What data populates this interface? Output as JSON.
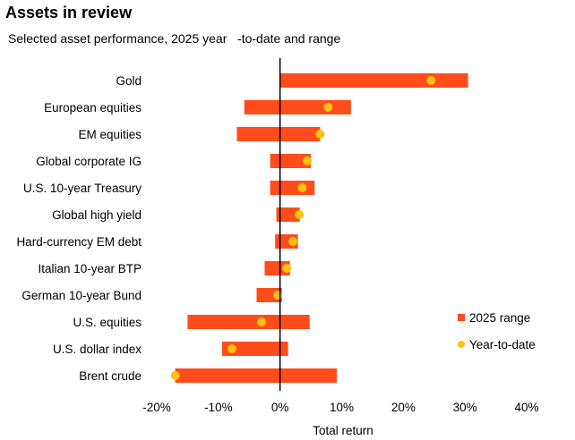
{
  "header": {
    "title": "Assets in review",
    "subtitle_parts": [
      "Selected asset performance, 2025 year",
      "-to-date",
      "and range"
    ]
  },
  "chart_data": {
    "type": "bar",
    "orientation": "horizontal",
    "title": "Assets in review",
    "subtitle": "Selected asset performance, 2025 year-to-date and range",
    "xlabel": "Total return",
    "ylabel": "",
    "xlim": [
      -20,
      40
    ],
    "xticks": [
      -20,
      -10,
      0,
      10,
      20,
      30,
      40
    ],
    "xtick_labels": [
      "-20%",
      "-10%",
      "0%",
      "10%",
      "20%",
      "30%",
      "40%"
    ],
    "categories": [
      "Gold",
      "European equities",
      "EM equities",
      "Global corporate IG",
      "U.S. 10-year Treasury",
      "Global high yield",
      "Hard-currency EM debt",
      "Italian 10-year BTP",
      "German 10-year Bund",
      "U.S. equities",
      "U.S. dollar index",
      "Brent crude"
    ],
    "series": [
      {
        "name": "2025 range",
        "color": "#FF4C1A",
        "kind": "range",
        "low": [
          0,
          -5.8,
          -7,
          -1.6,
          -1.6,
          -0.6,
          -0.8,
          -2.5,
          -3.8,
          -15,
          -9.4,
          -17
        ],
        "high": [
          30.5,
          11.5,
          6.5,
          5,
          5.6,
          3.2,
          2.9,
          1.6,
          0.3,
          4.8,
          1.3,
          9.2
        ]
      },
      {
        "name": "Year-to-date",
        "color": "#FFC20E",
        "kind": "point",
        "values": [
          24.5,
          7.8,
          6.5,
          4.4,
          3.6,
          3.1,
          2.1,
          1.1,
          -0.4,
          -3,
          -7.8,
          -17
        ]
      }
    ],
    "legend_position": "right",
    "grid": false
  }
}
